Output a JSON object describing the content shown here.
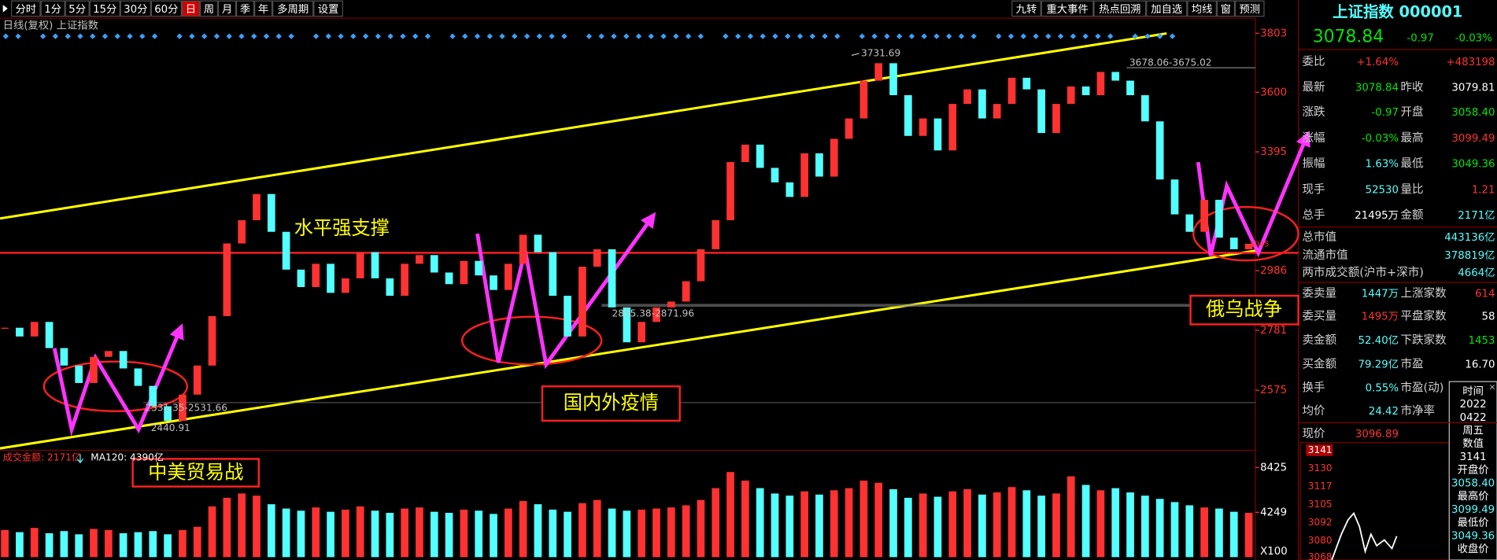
{
  "toolbar": {
    "left": [
      "分时",
      "1分",
      "5分",
      "15分",
      "30分",
      "60分",
      "日",
      "周",
      "月",
      "季",
      "年",
      "多周期",
      "设置"
    ],
    "right": [
      "九转",
      "重大事件",
      "热点回溯",
      "加自选",
      "均线",
      "窗",
      "预测"
    ]
  },
  "chart_header": "日线(复权) 上证指数",
  "chart_data": [
    {
      "type": "kline",
      "values": [
        2790,
        2760,
        2810,
        2720,
        2660,
        2600,
        2690,
        2710,
        2650,
        2590,
        2520,
        2470,
        2560,
        2660,
        2830,
        3080,
        3160,
        3250,
        3120,
        2990,
        2930,
        3010,
        2910,
        2960,
        3050,
        2960,
        2900,
        3010,
        3040,
        2980,
        2940,
        3020,
        2970,
        2920,
        3010,
        3110,
        3050,
        2900,
        2760,
        3000,
        3060,
        2860,
        2740,
        2810,
        2860,
        2880,
        2950,
        3060,
        3160,
        3360,
        3420,
        3340,
        3290,
        3240,
        3390,
        3310,
        3440,
        3510,
        3640,
        3700,
        3590,
        3450,
        3510,
        3400,
        3560,
        3610,
        3510,
        3560,
        3650,
        3610,
        3460,
        3560,
        3620,
        3590,
        3670,
        3640,
        3590,
        3500,
        3300,
        3180,
        3120,
        3230,
        3100,
        3060,
        3079
      ],
      "ylim": [
        2375,
        3819
      ],
      "yticks": [
        3803,
        3600,
        3395,
        2986,
        2781,
        2575
      ],
      "colors": {
        "up": "#ff3232",
        "down": "#54ffff"
      }
    },
    {
      "type": "bar",
      "legend": [
        "成交金额: 2171亿",
        "MA120: 4390亿"
      ],
      "values": [
        2600,
        2400,
        2800,
        2300,
        2500,
        2200,
        2700,
        2600,
        2300,
        2400,
        2500,
        2200,
        2600,
        2900,
        4800,
        5600,
        6000,
        5800,
        5000,
        4600,
        4400,
        4700,
        4300,
        4500,
        4800,
        4400,
        4200,
        4600,
        4700,
        4300,
        4200,
        4500,
        4400,
        4100,
        4600,
        5300,
        5000,
        4500,
        4300,
        5100,
        5400,
        4600,
        4400,
        4500,
        4600,
        4700,
        4900,
        5400,
        6500,
        8000,
        7200,
        6500,
        6000,
        5800,
        6200,
        5900,
        6300,
        6500,
        7200,
        7000,
        6400,
        5600,
        6000,
        5700,
        6200,
        6400,
        5900,
        6100,
        6600,
        6300,
        5800,
        6000,
        7600,
        6800,
        6300,
        6500,
        6100,
        5800,
        5500,
        5200,
        4900,
        4700,
        4600,
        4300,
        4200
      ],
      "ylim": [
        74,
        9136
      ],
      "yticks": [
        8425,
        4249
      ],
      "unit_label": "X100",
      "colors": {
        "up": "#ff3232",
        "down": "#54ffff"
      }
    }
  ],
  "annotations": {
    "support": "水平强支撑",
    "trade_war": "中美贸易战",
    "pandemic": "国内外疫情",
    "war": "俄乌战争",
    "high": "3731.69",
    "range_top": "3678.06-3675.02",
    "range_mid": "2855.38-2871.96",
    "range_low": "2531.35-2531.66",
    "low": "2440.91",
    "line_price": "3045"
  },
  "quote": {
    "name": "上证指数 000001",
    "price": "3078.84",
    "change": "-0.97",
    "pct": "-0.03%",
    "rows": [
      {
        "label": "委比",
        "value": "+1.64%",
        "value_color": "#ff3232",
        "value2": "+483198",
        "value2_color": "#ff3232"
      },
      {
        "label": "最新",
        "value": "3078.84",
        "value_color": "#00e600",
        "label2": "昨收",
        "value2": "3079.81",
        "value2_color": "#ffffff"
      },
      {
        "label": "涨跌",
        "value": "-0.97",
        "value_color": "#00e600",
        "label2": "开盘",
        "value2": "3058.40",
        "value2_color": "#00e600"
      },
      {
        "label": "涨幅",
        "value": "-0.03%",
        "value_color": "#00e600",
        "label2": "最高",
        "value2": "3099.49",
        "value2_color": "#ff3232"
      },
      {
        "label": "振幅",
        "value": "1.63%",
        "value_color": "#54ffff",
        "label2": "最低",
        "value2": "3049.36",
        "value2_color": "#00e600"
      },
      {
        "label": "现手",
        "value": "52530",
        "value_color": "#54ffff",
        "label2": "量比",
        "value2": "1.21",
        "value2_color": "#ff3232"
      },
      {
        "label": "总手",
        "value": "21495万",
        "value_color": "#ffffff",
        "label2": "金额",
        "value2": "2171亿",
        "value2_color": "#54ffff"
      },
      {
        "label": "总市值",
        "value2": "443136亿",
        "value2_color": "#54ffff"
      },
      {
        "label": "流通市值",
        "value2": "378819亿",
        "value2_color": "#54ffff"
      },
      {
        "label": "两市成交额(沪市+深市)",
        "value2": "4664亿",
        "value2_color": "#54ffff"
      },
      {
        "label": "委卖量",
        "value": "1447万",
        "value_color": "#54ffff",
        "label2": "上涨家数",
        "value2": "614",
        "value2_color": "#ff3232"
      },
      {
        "label": "委买量",
        "value": "1495万",
        "value_color": "#ff3232",
        "label2": "平盘家数",
        "value2": "58",
        "value2_color": "#ffffff"
      },
      {
        "label": "卖金额",
        "value": "52.40亿",
        "value_color": "#54ffff",
        "label2": "下跌家数",
        "value2": "1453",
        "value2_color": "#00e600"
      },
      {
        "label": "买金额",
        "value": "79.29亿",
        "value_color": "#54ffff",
        "label2": "市盈",
        "value2": "16.70",
        "value2_color": "#ffffff"
      },
      {
        "label": "换手",
        "value": "0.55%",
        "value_color": "#54ffff",
        "label2": "市盈(动)"
      },
      {
        "label": "均价",
        "value": "24.42",
        "value_color": "#54ffff",
        "label2": "市净率"
      },
      {
        "label": "现价",
        "value": "3096.89",
        "value_color": "#ff3232"
      }
    ]
  },
  "mini_chart": {
    "yticks": [
      "3141",
      "3130",
      "3117",
      "3105",
      "3092",
      "3080",
      "3068"
    ],
    "info": [
      "时间",
      "2022",
      "0422",
      "周五",
      "数值",
      "3141",
      "开盘价",
      "3058.40",
      "最高价",
      "3099.49",
      "最低价",
      "3049.36",
      "收盘价"
    ]
  }
}
